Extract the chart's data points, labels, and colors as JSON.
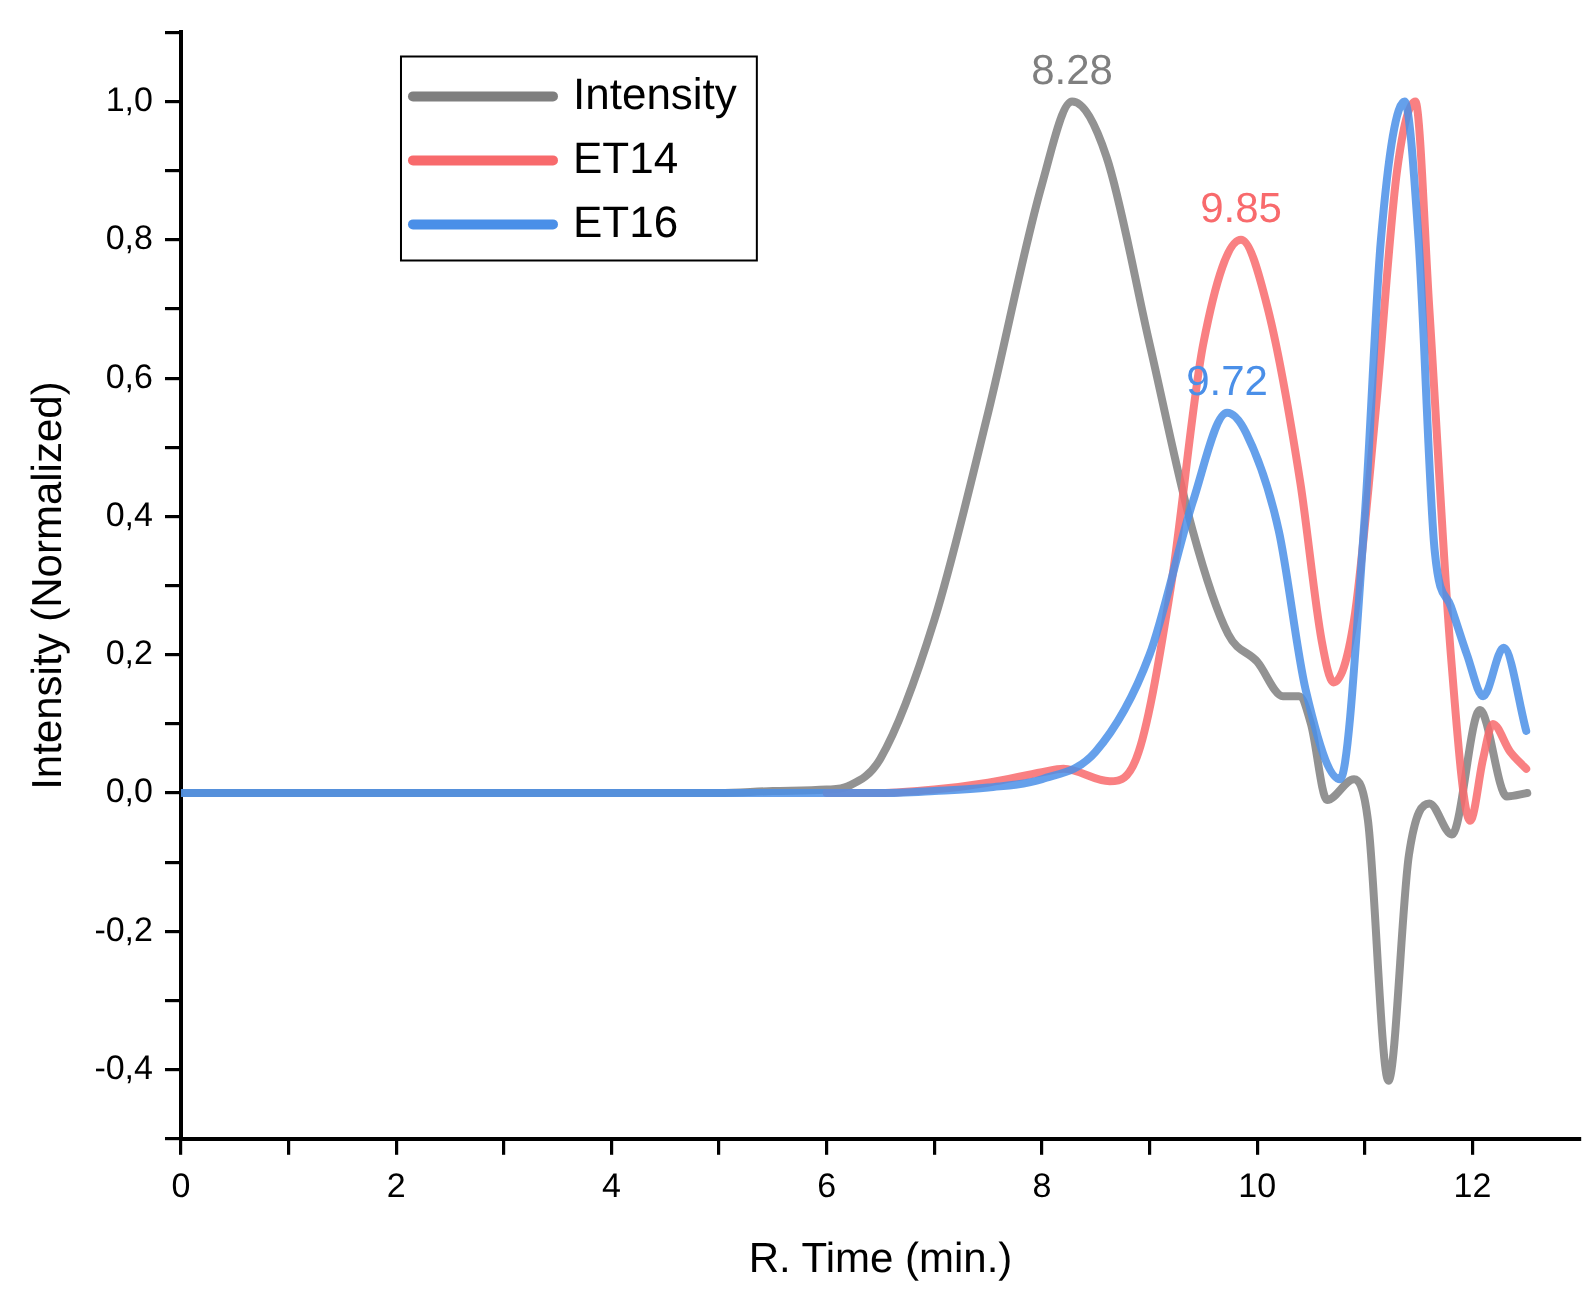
{
  "chart_data": {
    "type": "line",
    "xlabel": "R. Time (min.)",
    "ylabel": "Intensity (Normalized)",
    "xlim": [
      0,
      13
    ],
    "xticks": [
      0,
      {
        "value": 1,
        "label": null
      },
      2,
      {
        "value": 3,
        "label": null
      },
      4,
      {
        "value": 5,
        "label": null
      },
      6,
      {
        "value": 7,
        "label": null
      },
      8,
      {
        "value": 9,
        "label": null
      },
      10,
      {
        "value": 11,
        "label": null
      },
      12
    ],
    "ylim": [
      -0.5,
      1.1
    ],
    "yticks": [
      {
        "value": -0.5,
        "label": null
      },
      {
        "value": -0.4,
        "label": "-0,4"
      },
      {
        "value": -0.3,
        "label": null
      },
      {
        "value": -0.2,
        "label": "-0,2"
      },
      {
        "value": -0.1,
        "label": null
      },
      {
        "value": 0,
        "label": "0,0"
      },
      {
        "value": 0.1,
        "label": null
      },
      {
        "value": 0.2,
        "label": "0,2"
      },
      {
        "value": 0.3,
        "label": null
      },
      {
        "value": 0.4,
        "label": "0,4"
      },
      {
        "value": 0.5,
        "label": null
      },
      {
        "value": 0.6,
        "label": "0,6"
      },
      {
        "value": 0.7,
        "label": null
      },
      {
        "value": 0.8,
        "label": "0,8"
      },
      {
        "value": 0.9,
        "label": null
      },
      {
        "value": 1.0,
        "label": "1,0"
      },
      {
        "value": 1.1,
        "label": null
      }
    ],
    "grid": false,
    "legend": "top left",
    "marker": "none",
    "line_style": "solid",
    "series": [
      {
        "name": "Intensity",
        "color": "#7f7f7f",
        "x": [
          0,
          1,
          2,
          3,
          4,
          5,
          5.5,
          6,
          6.2,
          6.5,
          7,
          7.5,
          8,
          8.28,
          8.6,
          9,
          9.4,
          9.73,
          10,
          10.24,
          10.39,
          10.5,
          10.65,
          10.9,
          11.03,
          11.22,
          11.41,
          11.6,
          11.81,
          12.07,
          12.32,
          12.51
        ],
        "values": [
          0,
          0,
          0,
          0,
          0,
          0,
          0.003,
          0.005,
          0.01,
          0.05,
          0.25,
          0.55,
          0.88,
          1.0,
          0.92,
          0.65,
          0.38,
          0.23,
          0.19,
          0.14,
          0.14,
          0.1,
          -0.01,
          0.02,
          -0.04,
          -0.416,
          -0.09,
          -0.015,
          -0.06,
          0.12,
          -0.005,
          0
        ]
      },
      {
        "name": "ET14",
        "color": "#f86a6c",
        "x": [
          6,
          6.5,
          7,
          7.5,
          8,
          8.2,
          8.63,
          8.9,
          9.2,
          9.5,
          9.85,
          10.1,
          10.4,
          10.6,
          10.71,
          10.9,
          11.1,
          11.3,
          11.47,
          11.6,
          11.8,
          11.98,
          12.1,
          12.19,
          12.35,
          12.5
        ],
        "values": [
          0,
          0,
          0.005,
          0.015,
          0.03,
          0.035,
          0.017,
          0.06,
          0.3,
          0.65,
          0.8,
          0.7,
          0.45,
          0.22,
          0.16,
          0.25,
          0.55,
          0.9,
          1.0,
          0.7,
          0.2,
          -0.04,
          0.05,
          0.1,
          0.06,
          0.035
        ]
      },
      {
        "name": "ET16",
        "color": "#4a8fe8",
        "x": [
          0,
          1,
          2,
          3,
          4,
          5,
          6,
          6.5,
          7,
          7.5,
          8,
          8.5,
          9,
          9.4,
          9.72,
          9.9,
          10.2,
          10.45,
          10.77,
          11,
          11.15,
          11.37,
          11.5,
          11.65,
          11.8,
          11.95,
          12.1,
          12.29,
          12.5
        ],
        "values": [
          0,
          0,
          0,
          0,
          0,
          0,
          0,
          0,
          0.003,
          0.008,
          0.02,
          0.06,
          0.2,
          0.42,
          0.55,
          0.52,
          0.38,
          0.15,
          0.02,
          0.4,
          0.8,
          1.0,
          0.8,
          0.35,
          0.27,
          0.2,
          0.14,
          0.21,
          0.09
        ]
      }
    ],
    "annotations": [
      {
        "text": "8.28",
        "x": 8.28,
        "y": 1.0
      },
      {
        "text": "9.85",
        "x": 9.85,
        "y": 0.8
      },
      {
        "text": "9.72",
        "x": 9.72,
        "y": 0.55
      }
    ]
  }
}
